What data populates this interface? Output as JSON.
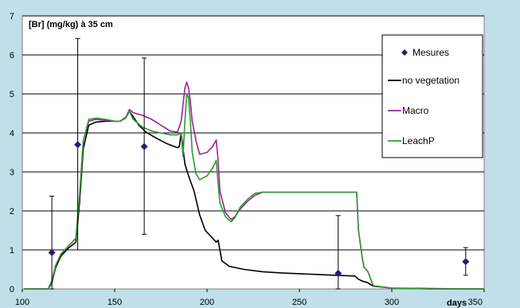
{
  "chart_data": {
    "type": "line",
    "title": "",
    "ylabel": "[Br] (mg/kg) à 35 cm",
    "xlabel": "days",
    "xlim": [
      100,
      350
    ],
    "ylim": [
      0,
      7
    ],
    "xticks": [
      100,
      150,
      200,
      250,
      300,
      350
    ],
    "yticks": [
      0,
      1,
      2,
      3,
      4,
      5,
      6,
      7
    ],
    "grid": "horizontal",
    "legend_position": "right",
    "colors": {
      "plot_background": "#ffffff",
      "outer_background": "#c0dfe8",
      "gridline": "#000000",
      "measures": "#1f1f7a",
      "no_vegetation": "#000000",
      "macro": "#a0209f",
      "leachp": "#2e9a2e"
    },
    "measurements": {
      "name": "Mesures",
      "points": [
        {
          "x": 116,
          "y": 0.93,
          "low": 0,
          "high": 2.38
        },
        {
          "x": 130,
          "y": 3.7,
          "low": 1.0,
          "high": 6.42
        },
        {
          "x": 166,
          "y": 3.65,
          "low": 1.4,
          "high": 5.92
        },
        {
          "x": 271,
          "y": 0.4,
          "low": 0,
          "high": 1.88
        },
        {
          "x": 340,
          "y": 0.7,
          "low": 0.35,
          "high": 1.06
        }
      ]
    },
    "series": [
      {
        "name": "no vegetation",
        "color": "#000000",
        "x": [
          101,
          114,
          116,
          118,
          121,
          125,
          129,
          131,
          133,
          136,
          140,
          145,
          150,
          153,
          156,
          158,
          160,
          163,
          167,
          172,
          178,
          184,
          185,
          186,
          188,
          190,
          193,
          196,
          199,
          203,
          205,
          206,
          208,
          212,
          220,
          230,
          240,
          250,
          260,
          270,
          280,
          282,
          284,
          287,
          290,
          300,
          320,
          340,
          350
        ],
        "y": [
          0,
          0,
          0.15,
          0.55,
          0.85,
          1.05,
          1.2,
          2.2,
          3.6,
          4.2,
          4.28,
          4.3,
          4.3,
          4.3,
          4.4,
          4.55,
          4.42,
          4.2,
          4.02,
          3.88,
          3.73,
          3.62,
          3.65,
          4.0,
          3.2,
          2.9,
          2.5,
          1.9,
          1.5,
          1.3,
          1.2,
          1.25,
          0.72,
          0.58,
          0.5,
          0.44,
          0.41,
          0.39,
          0.37,
          0.35,
          0.33,
          0.25,
          0.2,
          0.16,
          0.07,
          0.02,
          0.01,
          0,
          0
        ]
      },
      {
        "name": "Macro",
        "color": "#a0209f",
        "x": [
          101,
          114,
          116,
          118,
          121,
          125,
          129,
          131,
          133,
          136,
          140,
          145,
          150,
          153,
          156,
          158,
          160,
          165,
          170,
          175,
          180,
          184,
          186,
          188,
          189,
          190,
          191,
          192,
          194,
          196,
          200,
          203,
          205,
          206,
          207,
          210,
          213,
          215,
          218,
          222,
          226,
          230,
          240,
          260,
          281,
          282,
          284,
          285,
          287,
          290,
          300,
          320,
          350
        ],
        "y": [
          0,
          0,
          0.2,
          0.6,
          0.9,
          1.1,
          1.3,
          2.4,
          3.8,
          4.3,
          4.35,
          4.32,
          4.3,
          4.3,
          4.4,
          4.6,
          4.52,
          4.45,
          4.35,
          4.2,
          4.05,
          4.02,
          4.3,
          5.15,
          5.3,
          5.15,
          4.8,
          4.3,
          3.8,
          3.45,
          3.5,
          3.65,
          3.82,
          3.3,
          2.5,
          1.95,
          1.78,
          1.85,
          2.05,
          2.25,
          2.4,
          2.48,
          2.48,
          2.48,
          2.48,
          1.5,
          0.8,
          0.55,
          0.45,
          0.08,
          0.02,
          0,
          0
        ]
      },
      {
        "name": "LeachP",
        "color": "#2e9a2e",
        "x": [
          101,
          114,
          116,
          118,
          121,
          125,
          129,
          131,
          133,
          136,
          140,
          145,
          150,
          153,
          156,
          158,
          160,
          165,
          170,
          175,
          180,
          184,
          186,
          187,
          188,
          189,
          190,
          191,
          192,
          194,
          196,
          200,
          203,
          205,
          206,
          207,
          210,
          213,
          215,
          218,
          222,
          226,
          230,
          240,
          260,
          281,
          282,
          284,
          285,
          287,
          290,
          300,
          320,
          350
        ],
        "y": [
          0,
          0,
          0.2,
          0.6,
          0.9,
          1.1,
          1.3,
          2.4,
          3.8,
          4.35,
          4.38,
          4.35,
          4.3,
          4.3,
          4.38,
          4.55,
          4.35,
          4.15,
          4.05,
          4.0,
          3.95,
          3.95,
          4.0,
          3.4,
          4.3,
          5.0,
          4.9,
          4.3,
          3.5,
          2.95,
          2.8,
          2.9,
          3.1,
          3.3,
          2.7,
          2.2,
          1.85,
          1.72,
          1.82,
          2.1,
          2.3,
          2.45,
          2.48,
          2.48,
          2.48,
          2.48,
          1.5,
          0.8,
          0.55,
          0.45,
          0.08,
          0.02,
          0,
          0
        ]
      }
    ],
    "legend": [
      "Mesures",
      "no vegetation",
      "Macro",
      "LeachP"
    ]
  }
}
